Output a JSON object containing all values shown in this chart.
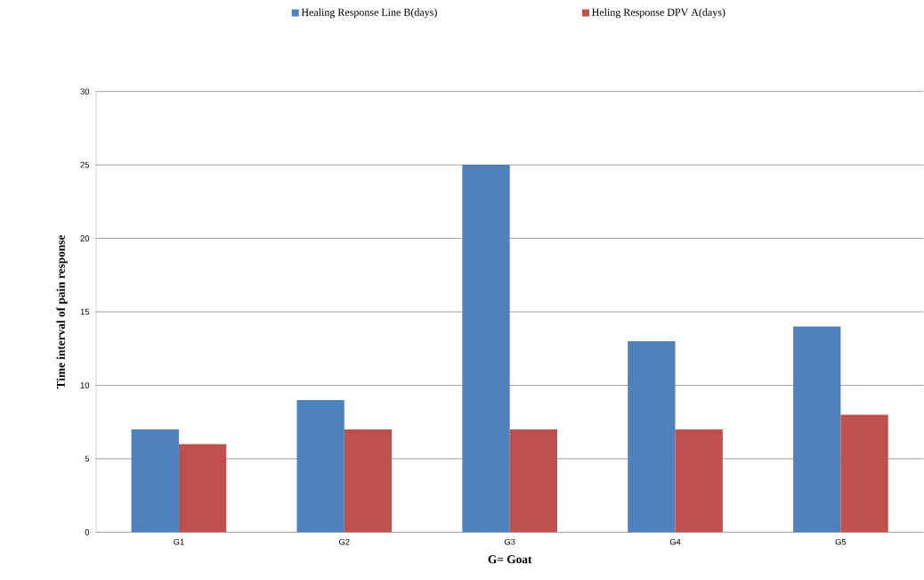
{
  "chart_data": {
    "type": "bar",
    "xlabel": "G= Goat",
    "ylabel": "Time interval of pain response",
    "categories": [
      "G1",
      "G2",
      "G3",
      "G4",
      "G5"
    ],
    "series": [
      {
        "name": "Healing Response Line B(days)",
        "color": "#4f81bd",
        "values": [
          7,
          9,
          25,
          13,
          14
        ]
      },
      {
        "name": "Heling Response DPV A(days)",
        "color": "#c0504d",
        "values": [
          6,
          7,
          7,
          7,
          8
        ]
      }
    ],
    "ylim": [
      0,
      30
    ],
    "yticks": [
      0,
      5,
      10,
      15,
      20,
      25,
      30
    ],
    "grid": "y",
    "legend": "top"
  }
}
